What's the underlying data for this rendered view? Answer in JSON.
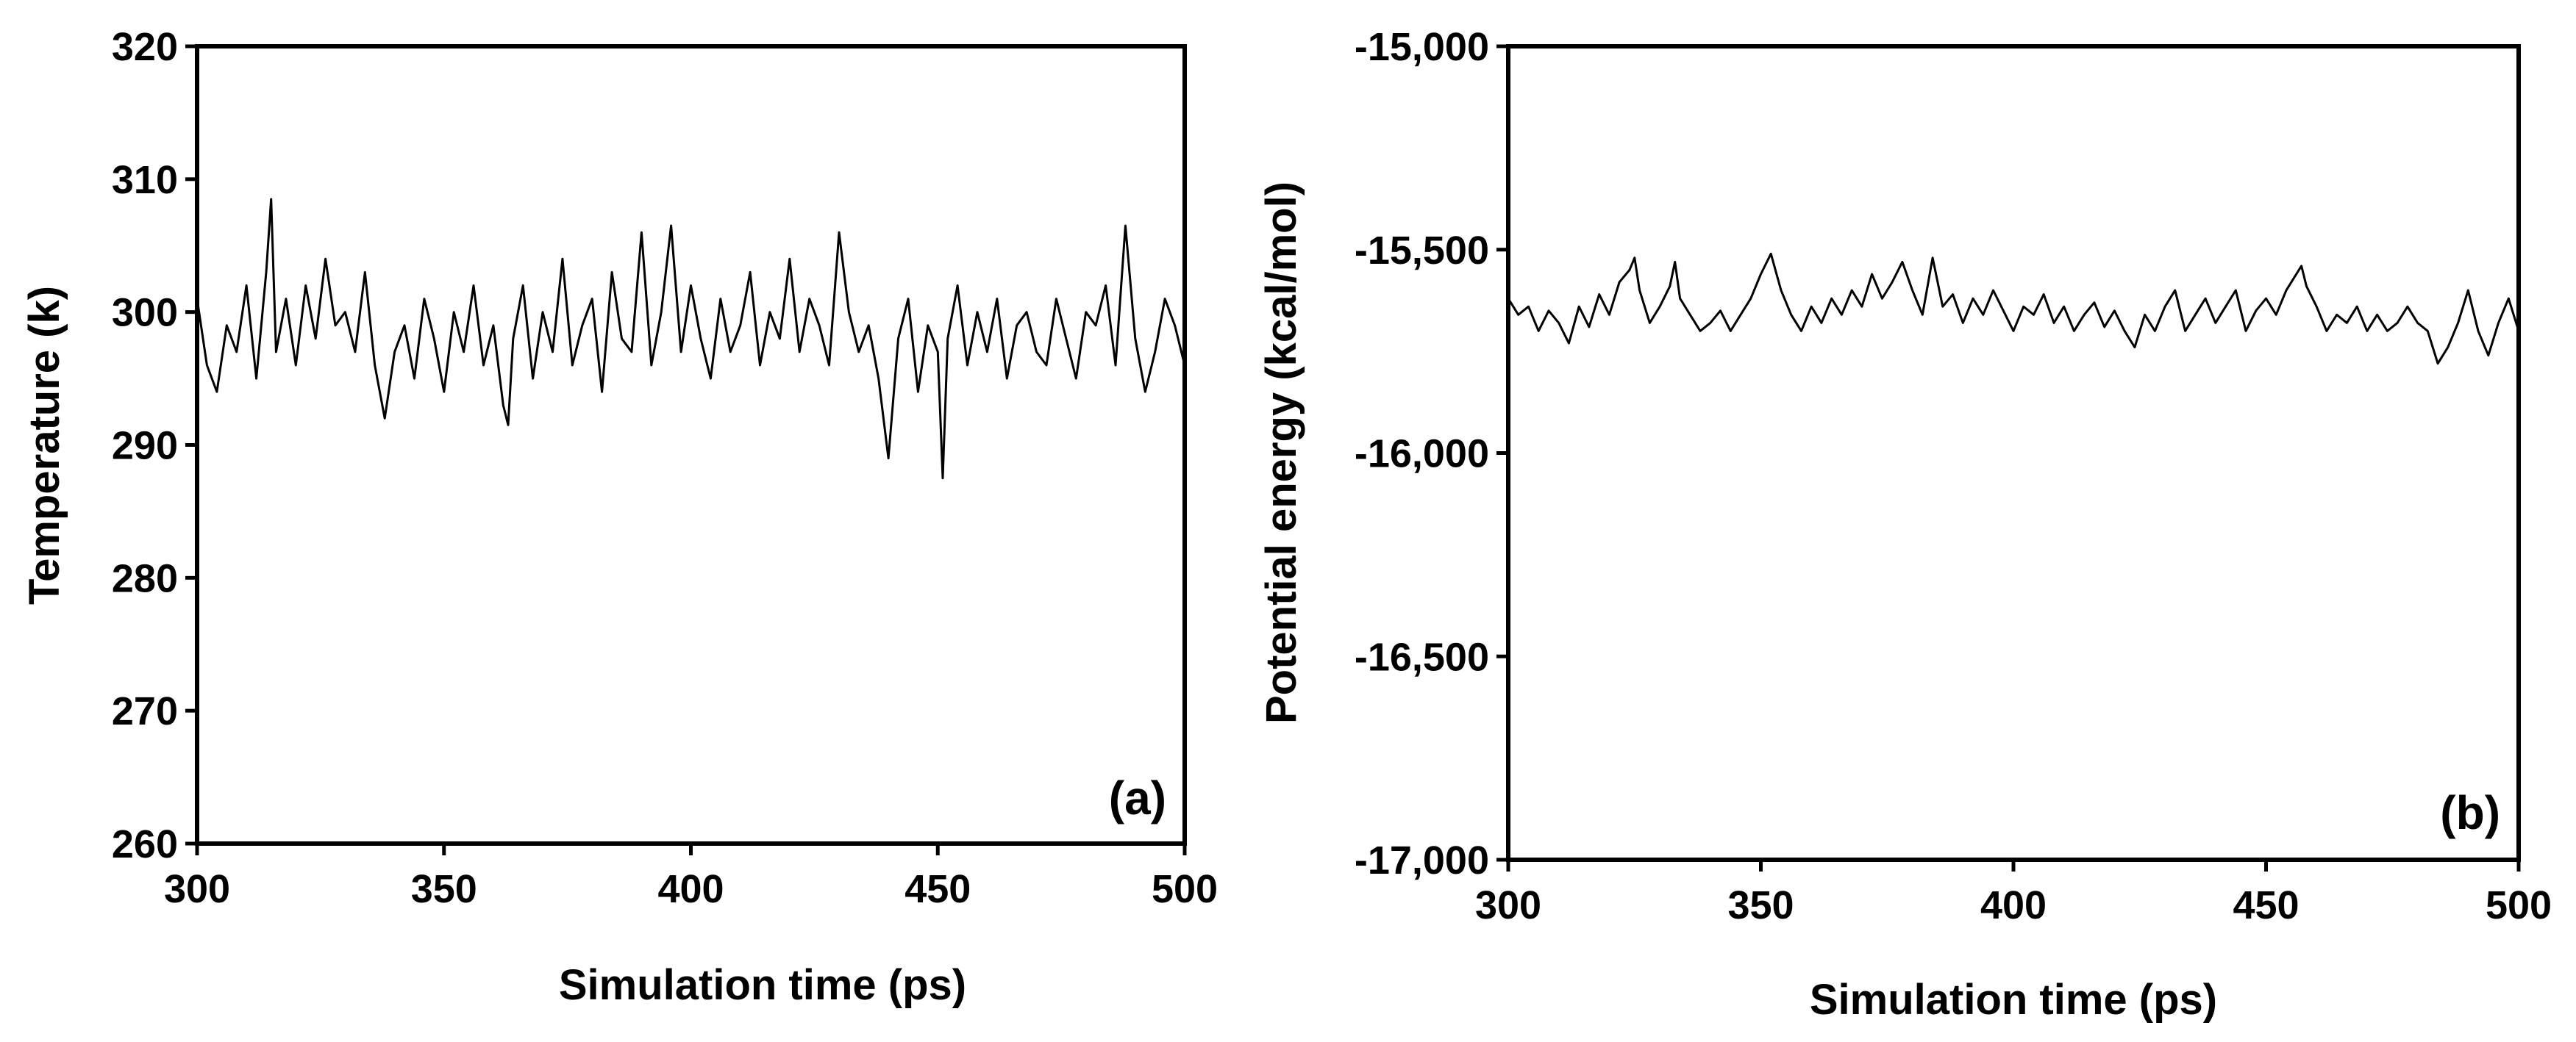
{
  "chart_data": [
    {
      "type": "line",
      "panel_label": "(a)",
      "xlabel": "Simulation time (ps)",
      "ylabel": "Temperature (k)",
      "xlim": [
        300,
        500
      ],
      "ylim": [
        260,
        320
      ],
      "xticks": [
        "300",
        "350",
        "400",
        "450",
        "500"
      ],
      "yticks": [
        "260",
        "270",
        "280",
        "290",
        "300",
        "310",
        "320"
      ],
      "series": [
        {
          "x": [
            300,
            302,
            304,
            306,
            308,
            310,
            312,
            314,
            315,
            316,
            318,
            320,
            322,
            324,
            326,
            328,
            330,
            332,
            334,
            336,
            338,
            340,
            342,
            344,
            346,
            348,
            350,
            352,
            354,
            356,
            358,
            360,
            362,
            363,
            364,
            366,
            368,
            370,
            372,
            374,
            376,
            378,
            380,
            382,
            384,
            386,
            388,
            390,
            392,
            394,
            396,
            398,
            400,
            402,
            404,
            406,
            408,
            410,
            412,
            414,
            416,
            418,
            420,
            422,
            424,
            426,
            428,
            430,
            432,
            434,
            436,
            438,
            440,
            442,
            444,
            446,
            448,
            450,
            451,
            452,
            454,
            456,
            458,
            460,
            462,
            464,
            466,
            468,
            470,
            472,
            474,
            476,
            478,
            480,
            482,
            484,
            486,
            488,
            490,
            492,
            494,
            496,
            498,
            500
          ],
          "values": [
            301,
            296,
            294,
            299,
            297,
            302,
            295,
            303,
            308.5,
            297,
            301,
            296,
            302,
            298,
            304,
            299,
            300,
            297,
            303,
            296,
            292,
            297,
            299,
            295,
            301,
            298,
            294,
            300,
            297,
            302,
            296,
            299,
            293,
            291.5,
            298,
            302,
            295,
            300,
            297,
            304,
            296,
            299,
            301,
            294,
            303,
            298,
            297,
            306,
            296,
            300,
            306.5,
            297,
            302,
            298,
            295,
            301,
            297,
            299,
            303,
            296,
            300,
            298,
            304,
            297,
            301,
            299,
            296,
            306,
            300,
            297,
            299,
            295,
            289,
            298,
            301,
            294,
            299,
            297,
            287.5,
            298,
            302,
            296,
            300,
            297,
            301,
            295,
            299,
            300,
            297,
            296,
            301,
            298,
            295,
            300,
            299,
            302,
            296,
            306.5,
            298,
            294,
            297,
            301,
            299,
            296
          ]
        }
      ]
    },
    {
      "type": "line",
      "panel_label": "(b)",
      "xlabel": "Simulation time (ps)",
      "ylabel": "Potential energy (kcal/mol)",
      "xlim": [
        300,
        500
      ],
      "ylim": [
        -17000,
        -15000
      ],
      "xticks": [
        "300",
        "350",
        "400",
        "450",
        "500"
      ],
      "yticks": [
        "-17,000",
        "-16,500",
        "-16,000",
        "-15,500",
        "-15,000"
      ],
      "series": [
        {
          "x": [
            300,
            302,
            304,
            306,
            308,
            310,
            312,
            314,
            316,
            318,
            320,
            322,
            324,
            325,
            326,
            328,
            330,
            332,
            333,
            334,
            336,
            338,
            340,
            342,
            344,
            346,
            348,
            350,
            352,
            354,
            356,
            358,
            360,
            362,
            364,
            366,
            368,
            370,
            372,
            374,
            376,
            378,
            380,
            382,
            384,
            386,
            388,
            390,
            392,
            394,
            396,
            398,
            400,
            402,
            404,
            406,
            408,
            410,
            412,
            414,
            416,
            418,
            420,
            422,
            424,
            426,
            428,
            430,
            432,
            434,
            436,
            438,
            440,
            442,
            444,
            446,
            448,
            450,
            452,
            454,
            456,
            457,
            458,
            460,
            462,
            464,
            466,
            468,
            470,
            472,
            474,
            476,
            478,
            480,
            482,
            484,
            486,
            488,
            490,
            492,
            494,
            496,
            498,
            500
          ],
          "values": [
            -15620,
            -15660,
            -15640,
            -15700,
            -15650,
            -15680,
            -15730,
            -15640,
            -15690,
            -15610,
            -15660,
            -15580,
            -15550,
            -15520,
            -15600,
            -15680,
            -15640,
            -15590,
            -15530,
            -15620,
            -15660,
            -15700,
            -15680,
            -15650,
            -15700,
            -15660,
            -15620,
            -15560,
            -15510,
            -15600,
            -15660,
            -15700,
            -15640,
            -15680,
            -15620,
            -15660,
            -15600,
            -15640,
            -15560,
            -15620,
            -15580,
            -15530,
            -15600,
            -15660,
            -15520,
            -15640,
            -15610,
            -15680,
            -15620,
            -15660,
            -15600,
            -15650,
            -15700,
            -15640,
            -15660,
            -15610,
            -15680,
            -15640,
            -15700,
            -15660,
            -15630,
            -15690,
            -15650,
            -15700,
            -15740,
            -15660,
            -15700,
            -15640,
            -15600,
            -15700,
            -15660,
            -15620,
            -15680,
            -15640,
            -15600,
            -15700,
            -15650,
            -15620,
            -15660,
            -15600,
            -15560,
            -15540,
            -15590,
            -15640,
            -15700,
            -15660,
            -15680,
            -15640,
            -15700,
            -15660,
            -15700,
            -15680,
            -15640,
            -15680,
            -15700,
            -15780,
            -15740,
            -15680,
            -15600,
            -15700,
            -15760,
            -15680,
            -15620,
            -15700
          ]
        }
      ]
    }
  ]
}
